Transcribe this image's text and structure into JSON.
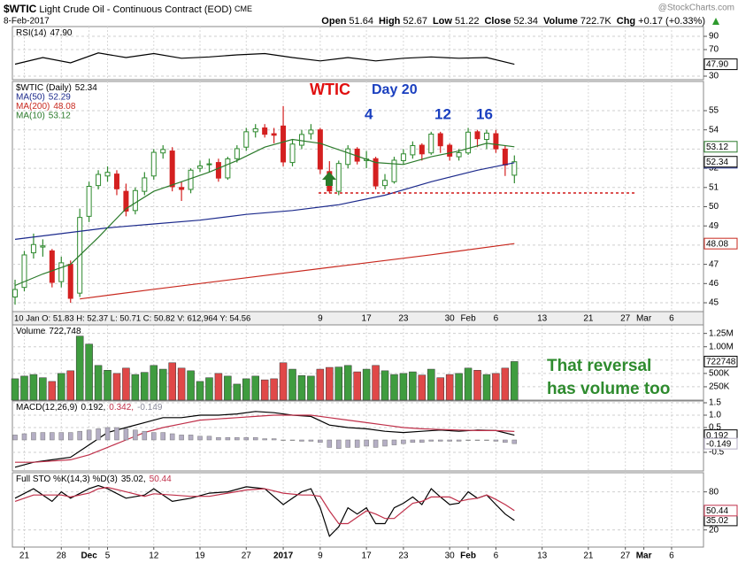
{
  "header": {
    "symbol": "$WTIC",
    "name": "Light Crude Oil - Continuous Contract (EOD)",
    "exchange": "CME",
    "date": "8-Feb-2017",
    "watermark": "@StockCharts.com",
    "stats": [
      {
        "label": "Open",
        "value": "51.64"
      },
      {
        "label": "High",
        "value": "52.67"
      },
      {
        "label": "Low",
        "value": "51.22"
      },
      {
        "label": "Close",
        "value": "52.34"
      },
      {
        "label": "Volume",
        "value": "722.7K"
      },
      {
        "label": "Chg",
        "value": "+0.17 (+0.33%)"
      }
    ]
  },
  "chart_data": [
    {
      "type": "line",
      "grid": true,
      "legend": [
        [
          {
            "text": "RSI(14)",
            "color": "#000000"
          },
          {
            "text": "47.90",
            "color": "#000000"
          }
        ]
      ],
      "ylim": [
        24.7,
        104.7
      ],
      "yticks": [
        90,
        70,
        30
      ],
      "series": [
        {
          "color": "#000000",
          "x": [
            0,
            3,
            6,
            9,
            12,
            15,
            18,
            21,
            24,
            27,
            30,
            33,
            36,
            39,
            42,
            45,
            48,
            51,
            54
          ],
          "values": [
            48,
            58,
            50,
            65,
            58,
            64,
            57,
            59,
            62,
            64,
            58,
            53,
            58,
            53,
            57,
            59,
            57,
            58,
            47.9
          ],
          "last_label": "47.90"
        }
      ]
    },
    {
      "type": "candlestick",
      "grid": true,
      "up_color": "#2f8a2f",
      "down_color": "#d42020",
      "legend": [
        [
          {
            "text": "$WTIC (Daily)",
            "color": "#000000"
          },
          {
            "text": "52.34",
            "color": "#000000"
          }
        ],
        [
          {
            "text": "MA(50)",
            "color": "#1c2a8c"
          },
          {
            "text": "52.29",
            "color": "#1c2a8c"
          }
        ],
        [
          {
            "text": "MA(200)",
            "color": "#c8281e"
          },
          {
            "text": "48.08",
            "color": "#c8281e"
          }
        ],
        [
          {
            "text": "MA(10)",
            "color": "#2a7a2a"
          },
          {
            "text": "53.12",
            "color": "#2a7a2a"
          }
        ]
      ],
      "info": "10 Jan O: 51.83  H: 52.37  L: 50.71  C: 50.82  V: 612,964  Y: 54.56",
      "annotations": [
        {
          "text": "WTIC",
          "color": "#e01010"
        },
        {
          "text": "Day 20",
          "color": "#1a3fbf"
        },
        {
          "text": "4",
          "color": "#1a3fbf"
        },
        {
          "text": "12",
          "color": "#1a3fbf"
        },
        {
          "text": "16",
          "color": "#1a3fbf"
        }
      ],
      "ylim": [
        44.54,
        56.52
      ],
      "yticks": [
        45,
        46,
        47,
        48,
        49,
        50,
        51,
        52,
        53,
        54,
        55
      ],
      "open": [
        45.3,
        45.8,
        47.6,
        47.9,
        47.7,
        46.1,
        47.0,
        45.5,
        49.5,
        51.1,
        51.6,
        51.7,
        50.8,
        49.8,
        50.8,
        51.6,
        52.8,
        52.9,
        51.0,
        50.9,
        52.0,
        52.2,
        52.3,
        51.5,
        52.5,
        53.1,
        53.9,
        54.1,
        53.8,
        54.2,
        52.3,
        53.2,
        53.8,
        54.0,
        51.83,
        50.8,
        52.2,
        53.0,
        52.4,
        52.5,
        51.1,
        51.3,
        52.4,
        52.7,
        53.2,
        52.8,
        53.8,
        53.2,
        52.6,
        52.8,
        53.9,
        53.5,
        53.8,
        53.0,
        51.64
      ],
      "high": [
        46.2,
        47.7,
        48.6,
        48.3,
        47.8,
        47.4,
        47.2,
        49.9,
        51.3,
        51.9,
        52.1,
        51.9,
        51.2,
        51.0,
        51.8,
        53.0,
        53.2,
        53.1,
        51.3,
        52.0,
        52.4,
        52.5,
        52.5,
        52.6,
        53.2,
        54.1,
        54.3,
        54.3,
        54.1,
        55.24,
        53.5,
        54.0,
        54.3,
        54.1,
        52.37,
        52.4,
        53.2,
        53.1,
        52.9,
        52.6,
        51.7,
        52.6,
        53.0,
        53.4,
        53.3,
        53.9,
        53.9,
        53.3,
        53.0,
        54.1,
        54.0,
        54.0,
        54.0,
        53.2,
        52.67
      ],
      "low": [
        44.9,
        45.6,
        47.3,
        47.4,
        45.8,
        45.8,
        45.0,
        45.3,
        49.2,
        50.9,
        51.3,
        50.6,
        49.5,
        49.6,
        50.6,
        51.4,
        52.5,
        50.8,
        50.3,
        50.7,
        51.8,
        51.8,
        51.3,
        51.4,
        52.3,
        52.9,
        53.6,
        53.6,
        53.3,
        52.1,
        52.1,
        53.0,
        53.5,
        51.7,
        50.71,
        50.6,
        52.0,
        52.2,
        52.0,
        50.9,
        50.9,
        51.2,
        52.2,
        52.5,
        52.4,
        52.7,
        52.8,
        52.4,
        52.4,
        52.7,
        53.1,
        53.0,
        52.8,
        51.6,
        51.22
      ],
      "close": [
        45.69,
        47.49,
        48.03,
        47.96,
        46.06,
        47.08,
        45.23,
        49.44,
        51.06,
        51.68,
        51.79,
        50.93,
        49.77,
        50.84,
        51.5,
        52.83,
        52.98,
        51.04,
        50.9,
        51.9,
        52.12,
        52.23,
        51.49,
        52.49,
        53.02,
        53.9,
        54.06,
        53.77,
        53.72,
        52.33,
        53.26,
        53.76,
        53.99,
        51.96,
        50.82,
        52.25,
        53.01,
        52.37,
        52.48,
        51.08,
        51.37,
        52.42,
        52.75,
        53.18,
        52.75,
        53.78,
        53.17,
        52.63,
        52.81,
        53.88,
        53.54,
        53.83,
        53.01,
        52.17,
        52.34
      ],
      "last_label": "52.34",
      "series": [
        {
          "color": "#1c2a8c",
          "x": [
            0,
            5,
            10,
            15,
            20,
            25,
            30,
            35,
            40,
            45,
            50,
            54
          ],
          "values": [
            48.3,
            48.6,
            48.9,
            49.1,
            49.3,
            49.6,
            49.8,
            50.1,
            50.6,
            51.3,
            51.9,
            52.29
          ],
          "last_label": "52.29"
        },
        {
          "color": "#c8281e",
          "x": [
            7,
            15,
            25,
            35,
            45,
            54
          ],
          "values": [
            45.2,
            45.7,
            46.3,
            46.9,
            47.5,
            48.08
          ],
          "last_label": "48.08"
        },
        {
          "color": "#2a7a2a",
          "x": [
            0,
            3,
            6,
            9,
            12,
            15,
            18,
            21,
            24,
            27,
            30,
            33,
            36,
            39,
            42,
            45,
            48,
            51,
            54
          ],
          "values": [
            45.9,
            46.5,
            47.0,
            48.4,
            49.9,
            50.8,
            51.3,
            51.8,
            52.4,
            53.1,
            53.5,
            53.3,
            52.8,
            52.3,
            52.2,
            52.6,
            52.9,
            53.3,
            53.12
          ],
          "last_label": "53.12"
        }
      ]
    },
    {
      "type": "bar",
      "grid": true,
      "up_color": "#3f9c3f",
      "down_color": "#e04848",
      "legend": [
        [
          {
            "text": "Volume",
            "color": "#000000"
          },
          {
            "text": "722,748",
            "color": "#000000"
          }
        ]
      ],
      "annotations": [
        {
          "text": "That reversal",
          "color": "#2e8b2e"
        },
        {
          "text": "has volume too",
          "color": "#2e8b2e"
        }
      ],
      "ylim": [
        0,
        1410000
      ],
      "yticks": [
        {
          "value": 1250000,
          "label": "1.25M"
        },
        {
          "value": 1000000,
          "label": "1.00M"
        },
        {
          "value": 750000,
          "label": "750K"
        },
        {
          "value": 500000,
          "label": "500K"
        },
        {
          "value": 250000,
          "label": "250K"
        }
      ],
      "values": [
        400000,
        450000,
        480000,
        420000,
        350000,
        500000,
        550000,
        1200000,
        1050000,
        650000,
        560000,
        500000,
        600000,
        480000,
        520000,
        650000,
        580000,
        700000,
        600000,
        550000,
        350000,
        420000,
        500000,
        450000,
        300000,
        400000,
        450000,
        380000,
        400000,
        700000,
        580000,
        460000,
        450000,
        580000,
        612964,
        620000,
        650000,
        530000,
        580000,
        650000,
        550000,
        480000,
        500000,
        530000,
        470000,
        580000,
        420000,
        480000,
        500000,
        600000,
        560000,
        480000,
        500000,
        600000,
        722748
      ],
      "last_label": "722748"
    },
    {
      "type": "macd",
      "grid": true,
      "legend": [
        [
          {
            "text": "MACD(12,26,9)",
            "color": "#000000"
          },
          {
            "text": "0.192,",
            "color": "#000000"
          },
          {
            "text": "0.342,",
            "color": "#c0304a"
          },
          {
            "text": "-0.149",
            "color": "#8a8a9a"
          }
        ]
      ],
      "ylim": [
        -1.25,
        1.571
      ],
      "yticks": [
        1.5,
        {
          "value": 1,
          "label": "1.0"
        },
        0.5,
        -0.5
      ],
      "series": [
        {
          "color": "#000000",
          "x": [
            0,
            2,
            4,
            6,
            8,
            10,
            12,
            14,
            16,
            18,
            20,
            22,
            24,
            26,
            28,
            30,
            32,
            34,
            36,
            38,
            40,
            42,
            44,
            46,
            48,
            50,
            52,
            54
          ],
          "values": [
            -1.1,
            -0.9,
            -0.8,
            -0.7,
            -0.2,
            0.3,
            0.5,
            0.7,
            0.9,
            0.9,
            1.0,
            1.0,
            1.05,
            1.15,
            1.1,
            1.0,
            0.95,
            0.6,
            0.5,
            0.45,
            0.35,
            0.3,
            0.35,
            0.4,
            0.35,
            0.4,
            0.38,
            0.192
          ],
          "last_label": "0.192"
        },
        {
          "color": "#c0304a",
          "x": [
            0,
            2,
            4,
            6,
            8,
            10,
            12,
            14,
            16,
            18,
            20,
            22,
            24,
            26,
            28,
            30,
            32,
            34,
            36,
            38,
            40,
            42,
            44,
            46,
            48,
            50,
            52,
            54
          ],
          "values": [
            -0.9,
            -0.9,
            -0.85,
            -0.8,
            -0.6,
            -0.3,
            0.0,
            0.3,
            0.5,
            0.65,
            0.8,
            0.85,
            0.9,
            0.95,
            1.0,
            1.0,
            1.0,
            0.9,
            0.8,
            0.7,
            0.6,
            0.5,
            0.45,
            0.42,
            0.4,
            0.38,
            0.38,
            0.342
          ]
        },
        {
          "style": "histogram",
          "color": "#b4aec4",
          "values": [
            0.2,
            0.25,
            0.3,
            0.3,
            0.3,
            0.3,
            0.3,
            0.35,
            0.4,
            0.45,
            0.5,
            0.5,
            0.45,
            0.4,
            0.35,
            0.3,
            0.3,
            0.25,
            0.2,
            0.2,
            0.15,
            0.15,
            0.1,
            0.1,
            0.1,
            0.1,
            0.1,
            0.05,
            0.05,
            0,
            -0.02,
            -0.05,
            -0.05,
            -0.1,
            -0.3,
            -0.35,
            -0.3,
            -0.3,
            -0.25,
            -0.3,
            -0.25,
            -0.2,
            -0.15,
            -0.1,
            -0.1,
            -0.05,
            -0.05,
            -0.05,
            -0.05,
            -0.02,
            -0.02,
            -0.02,
            -0.05,
            -0.1,
            -0.149
          ],
          "last_label": "-0.149"
        }
      ]
    },
    {
      "type": "stochastic",
      "grid": true,
      "legend": [
        [
          {
            "text": "Full STO %K(14,3) %D(3)",
            "color": "#000000"
          },
          {
            "text": "35.02,",
            "color": "#000000"
          },
          {
            "text": "50.44",
            "color": "#c0304a"
          }
        ]
      ],
      "ylim": [
        -7,
        110.2
      ],
      "yticks": [
        80,
        20
      ],
      "xlim": [
        -0.29,
        74.45
      ],
      "xticks": [
        {
          "value": 1,
          "label": "21"
        },
        {
          "value": 5,
          "label": "28"
        },
        {
          "value": 8,
          "label": "Dec"
        },
        {
          "value": 10,
          "label": "5"
        },
        {
          "value": 15,
          "label": "12"
        },
        {
          "value": 20,
          "label": "19"
        },
        {
          "value": 25,
          "label": "27"
        },
        {
          "value": 29,
          "label": "2017"
        },
        {
          "value": 33,
          "label": "9"
        },
        {
          "value": 38,
          "label": "17"
        },
        {
          "value": 42,
          "label": "23"
        },
        {
          "value": 47,
          "label": "30"
        },
        {
          "value": 49,
          "label": "Feb"
        },
        {
          "value": 52,
          "label": "6"
        },
        {
          "value": 57,
          "label": "13"
        },
        {
          "value": 62,
          "label": "21"
        },
        {
          "value": 66,
          "label": "27"
        },
        {
          "value": 68,
          "label": "Mar"
        },
        {
          "value": 71,
          "label": "6"
        }
      ],
      "series": [
        {
          "color": "#000000",
          "x": [
            0,
            2,
            4,
            5,
            6,
            8,
            9,
            10,
            12,
            14,
            15,
            17,
            19,
            21,
            23,
            25,
            27,
            29,
            31,
            32,
            33,
            34,
            35,
            36,
            37,
            38,
            39,
            40,
            41,
            42,
            43,
            44,
            45,
            46,
            47,
            48,
            49,
            50,
            51,
            52,
            53,
            54
          ],
          "values": [
            70,
            85,
            65,
            80,
            70,
            85,
            90,
            85,
            70,
            75,
            85,
            65,
            70,
            78,
            80,
            88,
            85,
            60,
            80,
            85,
            55,
            10,
            25,
            55,
            45,
            55,
            30,
            30,
            55,
            62,
            72,
            60,
            85,
            72,
            60,
            62,
            80,
            70,
            75,
            60,
            45,
            35.02
          ],
          "last_label": "35.02"
        },
        {
          "color": "#c0304a",
          "x": [
            0,
            2,
            4,
            5,
            6,
            8,
            9,
            10,
            12,
            14,
            15,
            17,
            19,
            21,
            23,
            25,
            27,
            29,
            31,
            32,
            33,
            34,
            35,
            36,
            37,
            38,
            39,
            40,
            41,
            42,
            43,
            44,
            45,
            46,
            47,
            48,
            49,
            50,
            51,
            52,
            53,
            54
          ],
          "values": [
            65,
            75,
            75,
            75,
            72,
            78,
            85,
            87,
            80,
            73,
            77,
            75,
            73,
            73,
            78,
            83,
            85,
            78,
            75,
            75,
            73,
            50,
            30,
            30,
            40,
            50,
            45,
            38,
            38,
            50,
            62,
            65,
            72,
            72,
            72,
            65,
            68,
            70,
            75,
            68,
            60,
            50.44
          ],
          "last_label": "50.44"
        }
      ]
    }
  ]
}
